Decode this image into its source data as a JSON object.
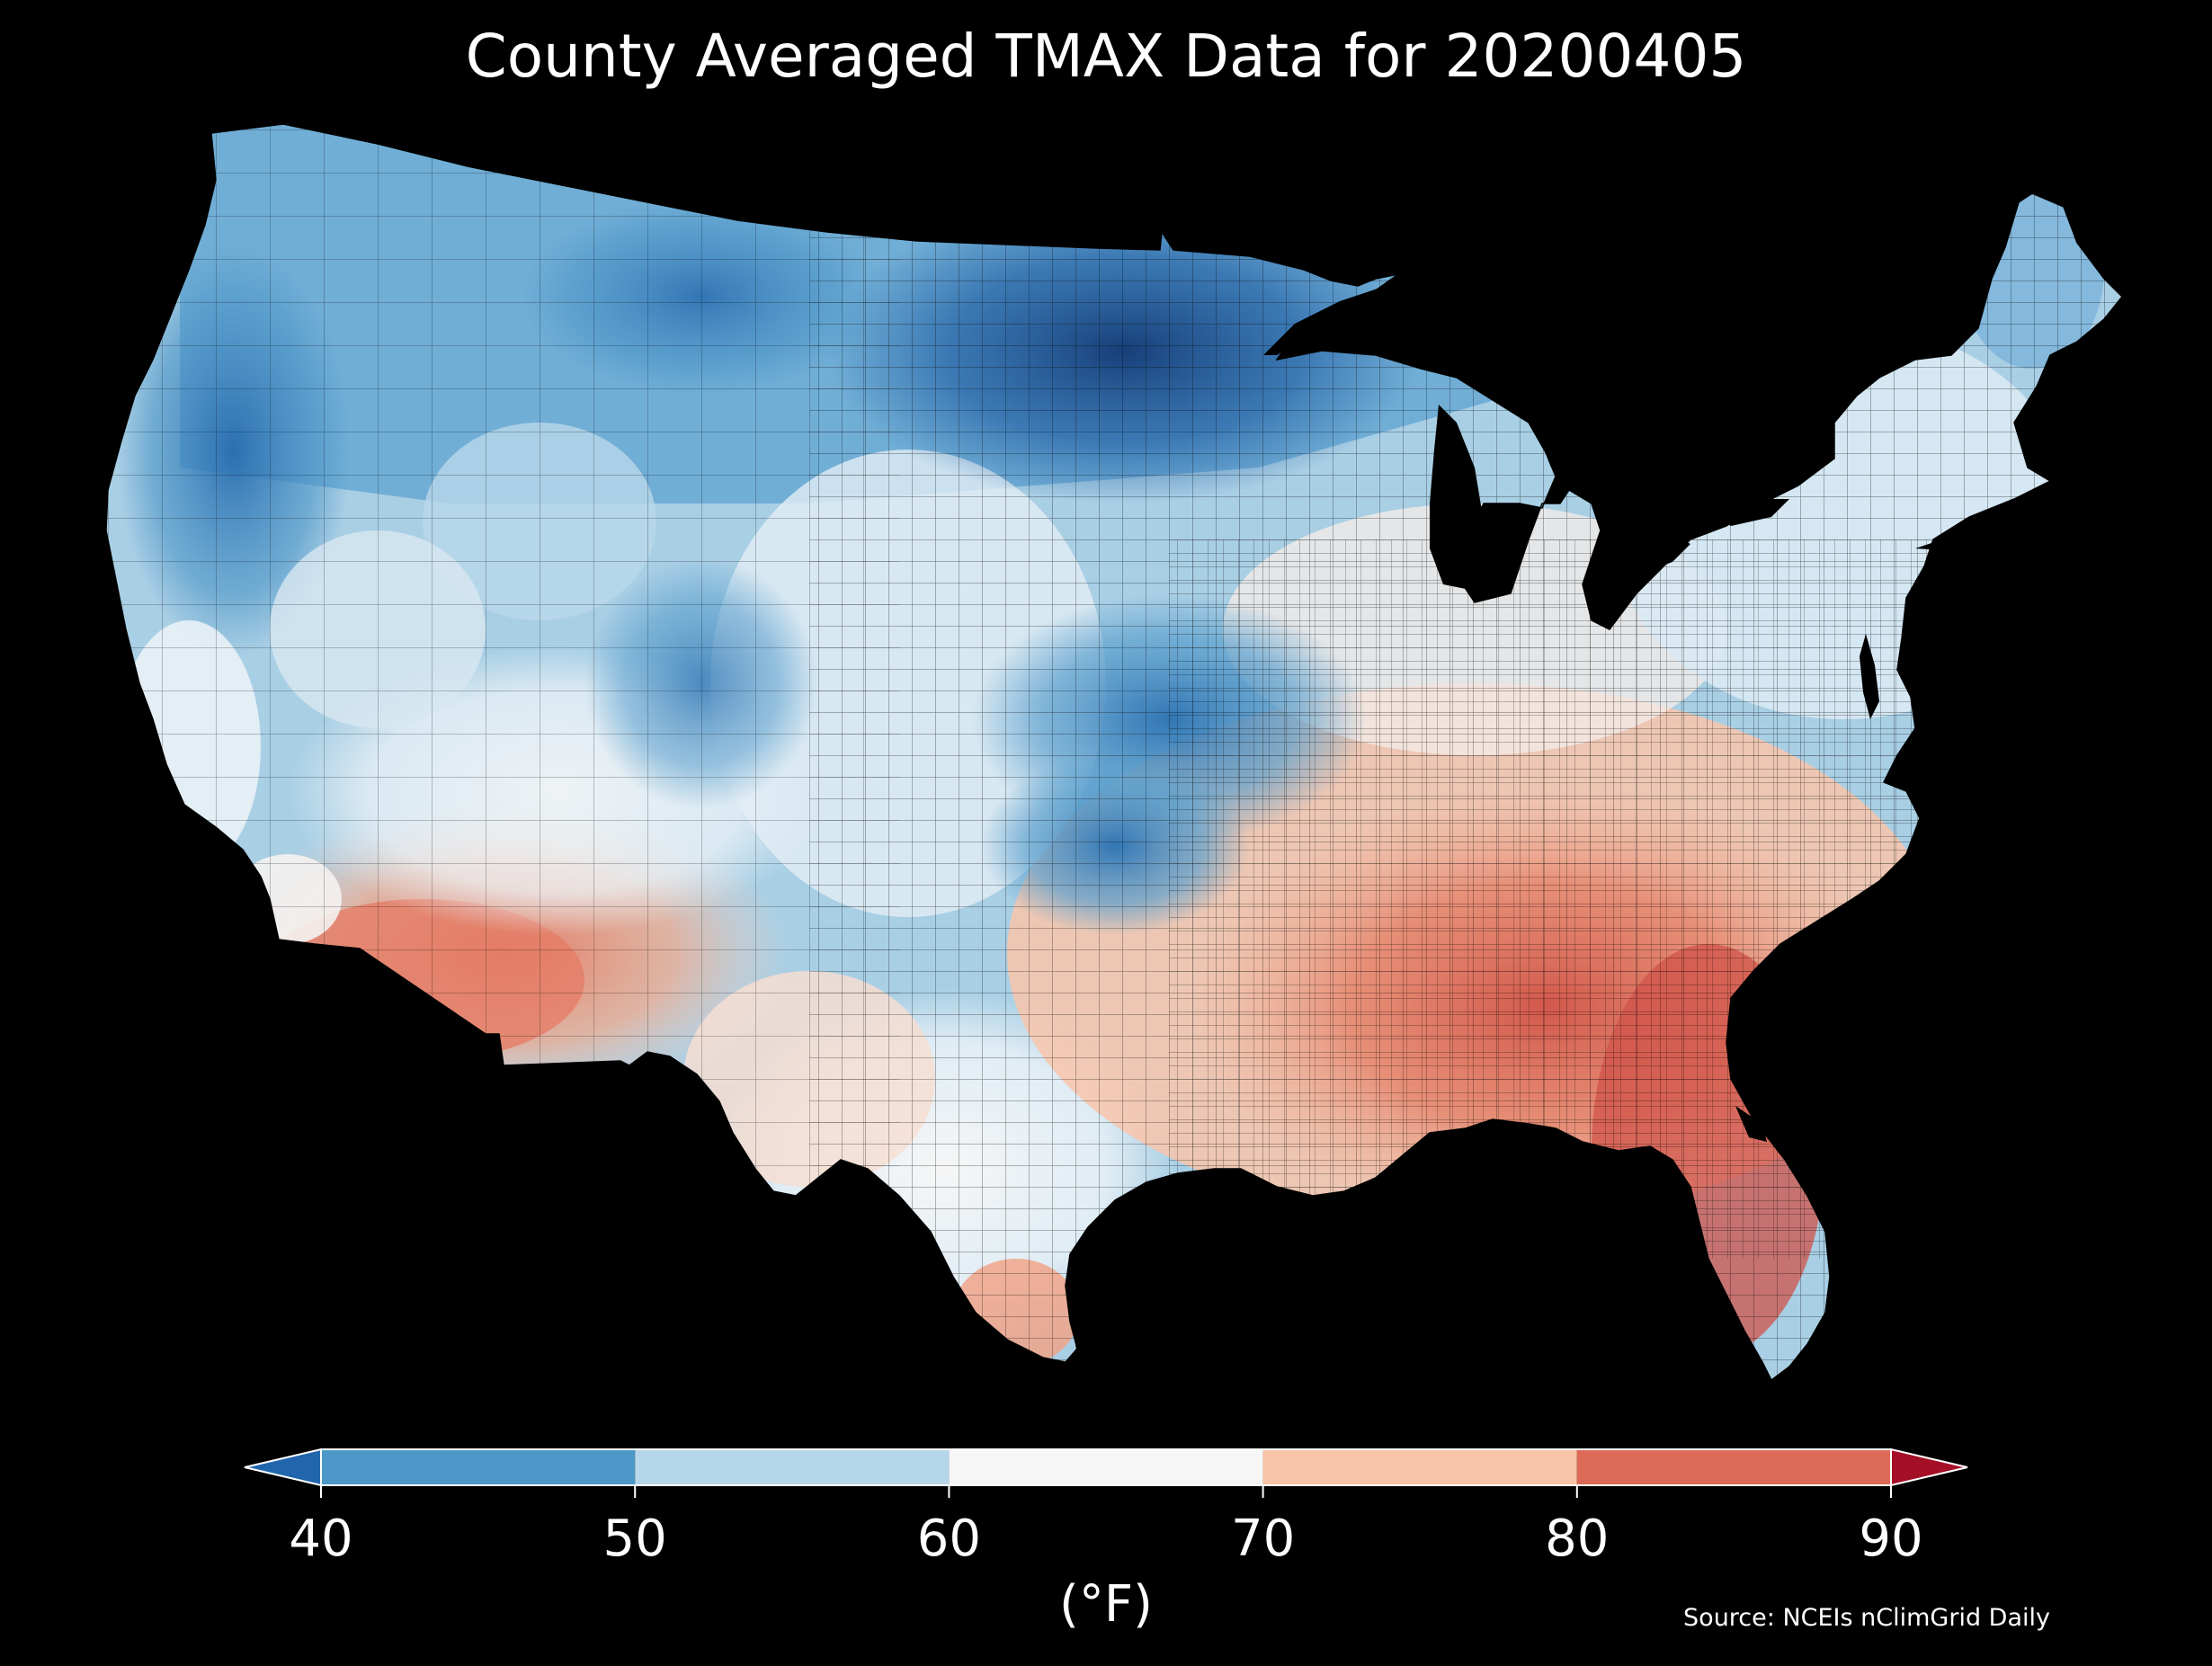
{
  "title": "County Averaged TMAX Data for 20200405",
  "colorbar": {
    "ticks": [
      "40",
      "50",
      "60",
      "70",
      "80",
      "90"
    ],
    "unit_label": "(°F)",
    "bins": [
      {
        "from": 40,
        "to": 50,
        "color": "#4b98c9"
      },
      {
        "from": 50,
        "to": 60,
        "color": "#b6d6e9"
      },
      {
        "from": 60,
        "to": 70,
        "color": "#f6f6f6"
      },
      {
        "from": 70,
        "to": 80,
        "color": "#f9c3a7"
      },
      {
        "from": 80,
        "to": 90,
        "color": "#dd6a56"
      }
    ],
    "extend_low_color": "#2166ac",
    "extend_high_color": "#a50f26"
  },
  "source": "Source: NCEIs nClimGrid Daily",
  "map_colors": {
    "deep_blue": "#1a4f8f",
    "blue": "#2f72b3",
    "mid_blue": "#4b98c9",
    "light_blue": "#9ecae1",
    "pale_blue": "#d4e6f1",
    "white": "#f4f4f4",
    "pale_orange": "#fbd5c0",
    "orange": "#f4a583",
    "salmon": "#e8806a",
    "red": "#d6604d",
    "deep_red": "#c4434a"
  }
}
